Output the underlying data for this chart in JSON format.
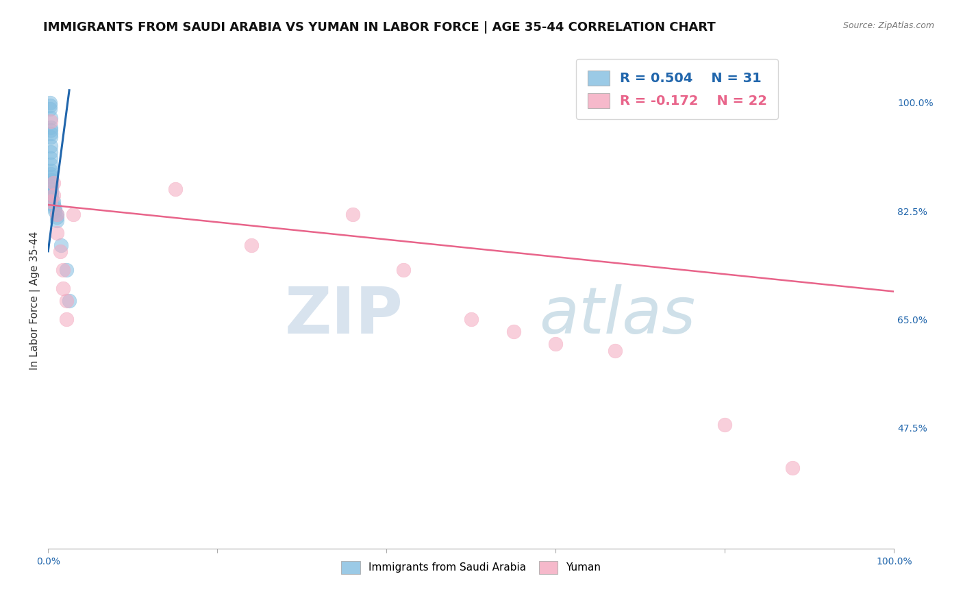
{
  "title": "IMMIGRANTS FROM SAUDI ARABIA VS YUMAN IN LABOR FORCE | AGE 35-44 CORRELATION CHART",
  "source_text": "Source: ZipAtlas.com",
  "ylabel": "In Labor Force | Age 35-44",
  "xlim": [
    0.0,
    1.0
  ],
  "ylim": [
    0.28,
    1.08
  ],
  "x_ticks": [
    0.0,
    0.2,
    0.4,
    0.6,
    0.8,
    1.0
  ],
  "x_tick_labels": [
    "0.0%",
    "",
    "",
    "",
    "",
    "100.0%"
  ],
  "y_tick_labels_right": [
    "47.5%",
    "65.0%",
    "82.5%",
    "100.0%"
  ],
  "y_ticks_right": [
    0.475,
    0.65,
    0.825,
    1.0
  ],
  "legend_R_blue": "R = 0.504",
  "legend_N_blue": "N = 31",
  "legend_R_pink": "R = -0.172",
  "legend_N_pink": "N = 22",
  "blue_color": "#82bde0",
  "pink_color": "#f4a8bf",
  "blue_line_color": "#2166ac",
  "pink_line_color": "#e8648a",
  "blue_x": [
    0.002,
    0.002,
    0.002,
    0.003,
    0.003,
    0.003,
    0.003,
    0.003,
    0.003,
    0.003,
    0.003,
    0.003,
    0.003,
    0.003,
    0.004,
    0.004,
    0.004,
    0.004,
    0.004,
    0.004,
    0.004,
    0.006,
    0.006,
    0.008,
    0.008,
    0.01,
    0.01,
    0.01,
    0.015,
    0.022,
    0.025
  ],
  "blue_y": [
    1.0,
    0.995,
    0.99,
    0.975,
    0.96,
    0.955,
    0.95,
    0.945,
    0.93,
    0.92,
    0.91,
    0.9,
    0.89,
    0.885,
    0.88,
    0.875,
    0.87,
    0.865,
    0.86,
    0.855,
    0.85,
    0.84,
    0.835,
    0.83,
    0.825,
    0.82,
    0.815,
    0.81,
    0.77,
    0.73,
    0.68
  ],
  "pink_x": [
    0.003,
    0.003,
    0.006,
    0.006,
    0.01,
    0.01,
    0.014,
    0.018,
    0.018,
    0.022,
    0.022,
    0.03,
    0.15,
    0.24,
    0.36,
    0.42,
    0.5,
    0.55,
    0.6,
    0.67,
    0.8,
    0.88
  ],
  "pink_y": [
    0.97,
    0.84,
    0.87,
    0.85,
    0.82,
    0.79,
    0.76,
    0.73,
    0.7,
    0.68,
    0.65,
    0.82,
    0.86,
    0.77,
    0.82,
    0.73,
    0.65,
    0.63,
    0.61,
    0.6,
    0.48,
    0.41
  ],
  "blue_trend_x": [
    0.0,
    0.025
  ],
  "blue_trend_y": [
    0.76,
    1.02
  ],
  "pink_trend_x": [
    0.0,
    1.0
  ],
  "pink_trend_y": [
    0.835,
    0.695
  ],
  "grid_color": "#bbbbbb",
  "background_color": "#ffffff",
  "title_fontsize": 13,
  "axis_label_fontsize": 11,
  "tick_fontsize": 10,
  "legend_fontsize": 13
}
